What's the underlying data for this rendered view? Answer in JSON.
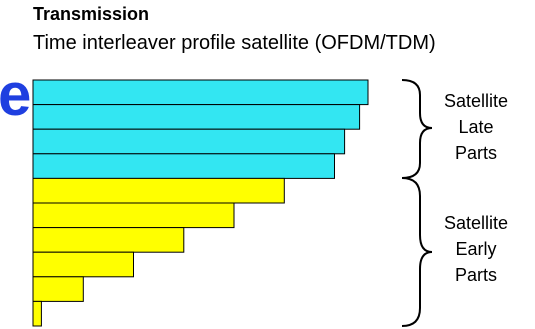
{
  "header": {
    "title": "Transmission",
    "subtitle": "Time interleaver profile satellite (OFDM/TDM)"
  },
  "fragment_text": "er",
  "colors": {
    "late_fill": "#33e6f2",
    "early_fill": "#ffff00",
    "fragment_color": "#1f3fe0",
    "stroke": "#000000"
  },
  "groups": [
    {
      "id": "late",
      "lines": [
        "Satellite",
        "Late",
        "Parts"
      ],
      "bar_lengths": [
        1.0,
        0.975,
        0.93,
        0.9
      ]
    },
    {
      "id": "early",
      "lines": [
        "Satellite",
        "Early",
        "Parts"
      ],
      "bar_lengths": [
        0.75,
        0.6,
        0.45,
        0.3,
        0.15,
        0.025
      ]
    }
  ]
}
